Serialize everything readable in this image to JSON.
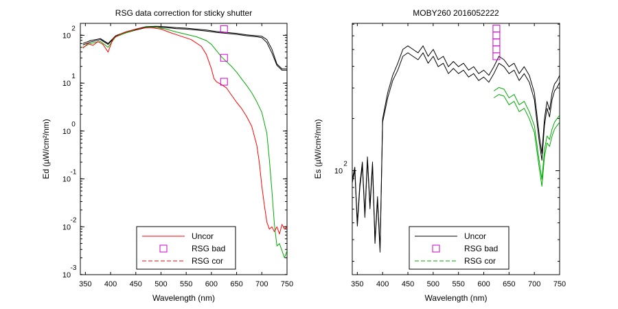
{
  "chart_data": [
    {
      "type": "line",
      "title": "RSG data correction for sticky shutter",
      "xlabel": "Wavelength (nm)",
      "ylabel": "Ed (µW/cm²/nm)",
      "xlim": [
        340,
        750
      ],
      "ylim_log10": [
        -3.05,
        2.2
      ],
      "y_scale": "log",
      "x_ticks": [
        350,
        400,
        450,
        500,
        550,
        600,
        650,
        700,
        750
      ],
      "y_ticks": [
        {
          "base": "10",
          "exp": "2",
          "value_log10": 1.95
        },
        {
          "base": "10",
          "exp": "1",
          "value_log10": 0.95
        },
        {
          "base": "10",
          "exp": "0",
          "value_log10": -0.05
        },
        {
          "base": "10",
          "exp": "-1",
          "value_log10": -1.05
        },
        {
          "base": "10",
          "exp": "-2",
          "value_log10": -2.05
        },
        {
          "base": "10",
          "exp": "-3",
          "value_log10": -3.05
        }
      ],
      "legend": {
        "placement": "bottom",
        "entries": [
          "Uncor",
          "RSG bad",
          "RSG cor"
        ]
      },
      "series": [
        {
          "name": "Uncor",
          "color": "#000000",
          "x": [
            345,
            360,
            380,
            395,
            410,
            430,
            450,
            470,
            490,
            510,
            530,
            550,
            570,
            590,
            610,
            630,
            650,
            670,
            690,
            700,
            710,
            720,
            730,
            740,
            750
          ],
          "log10_y": [
            1.78,
            1.84,
            1.88,
            1.78,
            1.94,
            2.02,
            2.08,
            2.13,
            2.14,
            2.13,
            2.11,
            2.1,
            2.08,
            2.06,
            2.03,
            2.01,
            1.99,
            1.96,
            1.94,
            1.93,
            1.86,
            1.66,
            1.35,
            1.25,
            1.25
          ]
        },
        {
          "name": "Uncor",
          "color": "#000000",
          "x": [
            345,
            360,
            380,
            395,
            410,
            430,
            450,
            470,
            490,
            510,
            530,
            550,
            570,
            590,
            610,
            630,
            650,
            670,
            690,
            700,
            710,
            720,
            730,
            740,
            750
          ],
          "log10_y": [
            1.75,
            1.81,
            1.86,
            1.76,
            1.92,
            2.0,
            2.06,
            2.11,
            2.12,
            2.11,
            2.09,
            2.08,
            2.06,
            2.04,
            2.01,
            1.99,
            1.97,
            1.94,
            1.92,
            1.9,
            1.8,
            1.58,
            1.32,
            1.22,
            1.22
          ]
        },
        {
          "name": "RSG cor",
          "color": "#00aa00",
          "x": [
            345,
            360,
            380,
            395,
            410,
            430,
            450,
            470,
            490,
            510,
            530,
            550,
            570,
            590,
            600,
            610,
            620,
            630,
            640,
            650,
            660,
            670,
            680,
            690,
            700,
            710,
            715,
            720,
            725,
            730,
            735,
            740,
            745,
            750
          ],
          "log10_y": [
            1.7,
            1.78,
            1.82,
            1.7,
            1.92,
            2.0,
            2.07,
            2.12,
            2.12,
            2.08,
            2.02,
            1.97,
            1.92,
            1.84,
            1.76,
            1.63,
            1.5,
            1.4,
            1.3,
            1.18,
            1.04,
            0.9,
            0.75,
            0.56,
            0.34,
            -0.1,
            -0.65,
            -1.3,
            -2.0,
            -2.45,
            -2.4,
            -2.55,
            -2.7,
            -2.55
          ]
        },
        {
          "name": "Uncor",
          "color": "#ff0000",
          "x": [
            345,
            355,
            365,
            375,
            385,
            395,
            405,
            420,
            440,
            460,
            480,
            500,
            520,
            540,
            560,
            580,
            590,
            600,
            605,
            610,
            620,
            630,
            640,
            650,
            660,
            670,
            680,
            690,
            695,
            700,
            705,
            710,
            715,
            720,
            725,
            730,
            735,
            740,
            745,
            750
          ],
          "log10_y": [
            1.68,
            1.78,
            1.74,
            1.82,
            1.76,
            1.6,
            1.88,
            1.98,
            2.05,
            2.1,
            2.11,
            2.08,
            2.0,
            1.93,
            1.86,
            1.72,
            1.55,
            1.25,
            1.05,
            0.98,
            0.92,
            0.85,
            0.7,
            0.55,
            0.42,
            0.25,
            0.05,
            -0.35,
            -0.7,
            -1.2,
            -1.6,
            -1.95,
            -2.1,
            -2.05,
            -2.15,
            -2.05,
            -2.2,
            -2.0,
            -2.1,
            -2.05
          ]
        }
      ],
      "markers": {
        "name": "RSG bad",
        "color": "#cc00cc",
        "x": [
          625,
          625,
          625
        ],
        "log10_y": [
          2.08,
          1.48,
          0.98
        ]
      }
    },
    {
      "type": "line",
      "title": "MOBY260  2016052222",
      "xlabel": "Wavelength (nm)",
      "ylabel": "Es (µW/cm²/nm)",
      "xlim": [
        340,
        750
      ],
      "ylim_log10": [
        1.4,
        2.85
      ],
      "y_scale": "log",
      "x_ticks": [
        350,
        400,
        450,
        500,
        550,
        600,
        650,
        700,
        750
      ],
      "y_ticks": [
        {
          "base": "10",
          "exp": "2",
          "value_log10": 2.0
        }
      ],
      "legend": {
        "placement": "bottom",
        "entries": [
          "Uncor",
          "RSG bad",
          "RSG cor"
        ]
      },
      "series": [
        {
          "name": "Uncor",
          "color": "#000000",
          "x": [
            340,
            345,
            350,
            355,
            360,
            365,
            370,
            375,
            380,
            385,
            390,
            395,
            400,
            410,
            420,
            430,
            440,
            450,
            460,
            470,
            480,
            490,
            500,
            510,
            520,
            530,
            540,
            550,
            560,
            570,
            580,
            590,
            600,
            610,
            620,
            630,
            640,
            650,
            660,
            670,
            680,
            690,
            700,
            710,
            715,
            720,
            725,
            730,
            735,
            740,
            745,
            750
          ],
          "log10_y": [
            1.95,
            2.02,
            1.7,
            1.92,
            2.05,
            1.75,
            2.08,
            1.8,
            2.05,
            1.6,
            1.85,
            1.55,
            2.3,
            2.45,
            2.55,
            2.62,
            2.7,
            2.72,
            2.7,
            2.68,
            2.72,
            2.66,
            2.7,
            2.64,
            2.66,
            2.6,
            2.63,
            2.6,
            2.62,
            2.58,
            2.6,
            2.56,
            2.58,
            2.55,
            2.6,
            2.66,
            2.64,
            2.6,
            2.62,
            2.56,
            2.6,
            2.55,
            2.45,
            2.2,
            2.1,
            2.3,
            2.4,
            2.35,
            2.45,
            2.5,
            2.52,
            2.55
          ]
        },
        {
          "name": "Uncor",
          "color": "#000000",
          "x": [
            340,
            345,
            350,
            355,
            360,
            365,
            370,
            375,
            380,
            385,
            390,
            395,
            400,
            410,
            420,
            430,
            440,
            450,
            460,
            470,
            480,
            490,
            500,
            510,
            520,
            530,
            540,
            550,
            560,
            570,
            580,
            590,
            600,
            610,
            620,
            630,
            640,
            650,
            660,
            670,
            680,
            690,
            700,
            710,
            715,
            720,
            725,
            730,
            735,
            740,
            745,
            750
          ],
          "log10_y": [
            1.93,
            2.0,
            1.68,
            1.9,
            2.03,
            1.73,
            2.06,
            1.78,
            2.03,
            1.58,
            1.83,
            1.53,
            2.28,
            2.42,
            2.52,
            2.58,
            2.66,
            2.68,
            2.66,
            2.64,
            2.68,
            2.62,
            2.66,
            2.6,
            2.62,
            2.56,
            2.59,
            2.56,
            2.58,
            2.54,
            2.56,
            2.52,
            2.54,
            2.51,
            2.56,
            2.62,
            2.6,
            2.56,
            2.58,
            2.52,
            2.56,
            2.51,
            2.41,
            2.16,
            2.06,
            2.26,
            2.36,
            2.31,
            2.41,
            2.46,
            2.48,
            2.51
          ]
        },
        {
          "name": "RSG cor",
          "color": "#00aa00",
          "x": [
            620,
            630,
            640,
            650,
            660,
            670,
            680,
            690,
            700,
            710,
            715,
            720,
            725,
            730,
            735,
            740,
            745,
            750
          ],
          "log10_y": [
            2.46,
            2.48,
            2.47,
            2.42,
            2.44,
            2.38,
            2.4,
            2.34,
            2.26,
            2.05,
            1.95,
            2.12,
            2.2,
            2.18,
            2.24,
            2.28,
            2.3,
            2.32
          ]
        },
        {
          "name": "RSG cor",
          "color": "#00aa00",
          "x": [
            620,
            630,
            640,
            650,
            660,
            670,
            680,
            690,
            700,
            710,
            715,
            720,
            725,
            730,
            735,
            740,
            745,
            750
          ],
          "log10_y": [
            2.42,
            2.44,
            2.43,
            2.38,
            2.4,
            2.34,
            2.36,
            2.3,
            2.22,
            2.01,
            1.91,
            2.08,
            2.16,
            2.14,
            2.2,
            2.24,
            2.26,
            2.28
          ]
        }
      ],
      "markers": {
        "name": "RSG bad",
        "color": "#cc00cc",
        "x": [
          625,
          625,
          625,
          625,
          625
        ],
        "log10_y": [
          2.82,
          2.78,
          2.74,
          2.7,
          2.66
        ]
      }
    }
  ]
}
